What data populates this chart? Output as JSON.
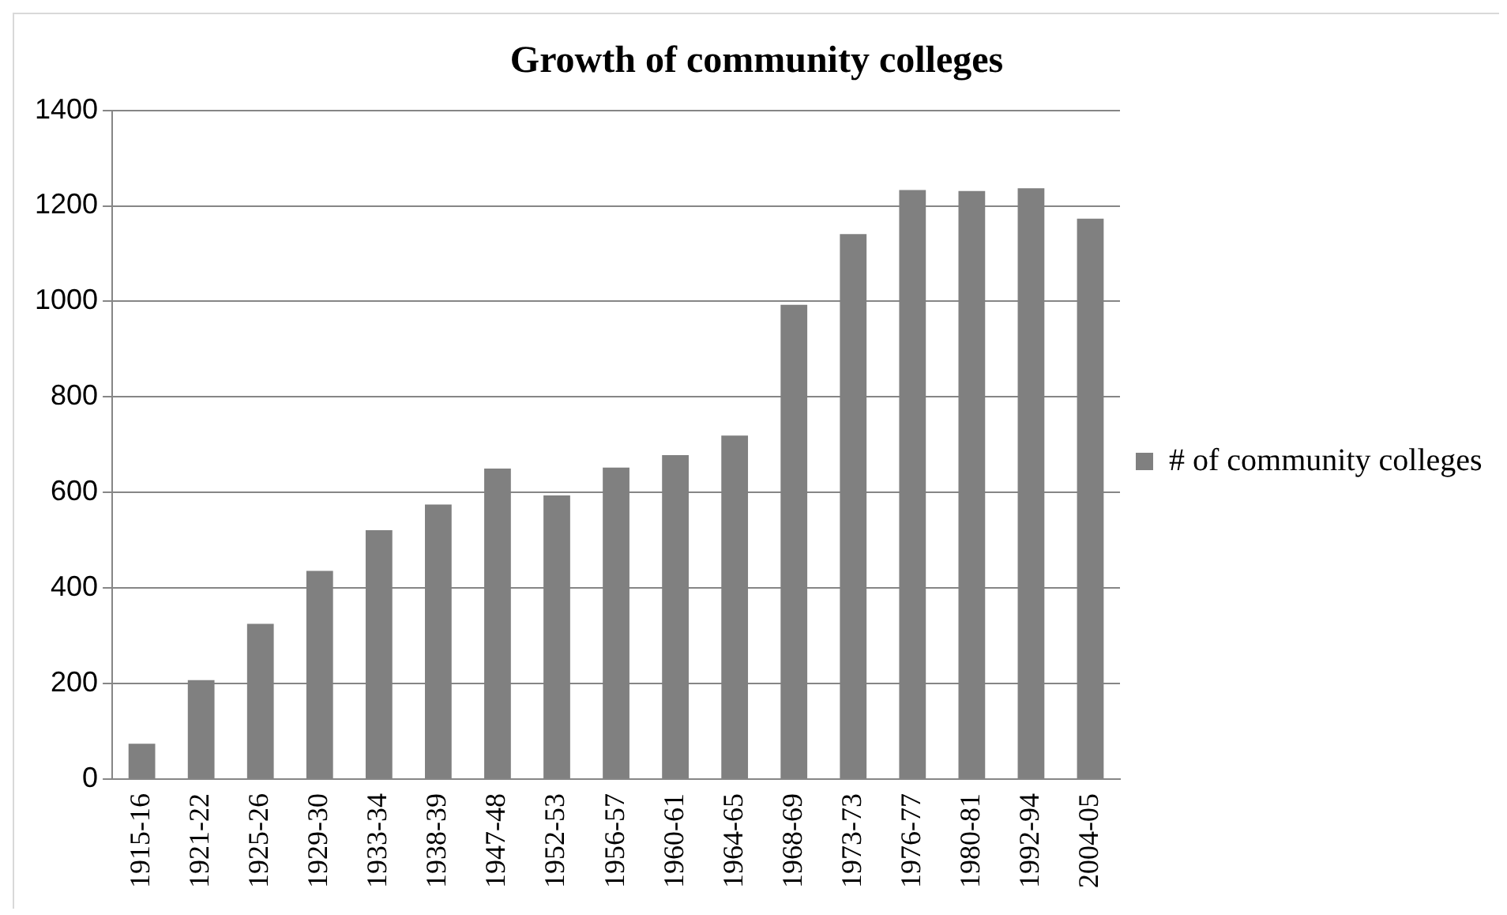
{
  "chart_data": {
    "type": "bar",
    "title": "Growth of community colleges",
    "categories": [
      "1915-16",
      "1921-22",
      "1925-26",
      "1929-30",
      "1933-34",
      "1938-39",
      "1947-48",
      "1952-53",
      "1956-57",
      "1960-61",
      "1964-65",
      "1968-69",
      "1973-73",
      "1976-77",
      "1980-81",
      "1992-94",
      "2004-05"
    ],
    "series": [
      {
        "name": "# of community colleges",
        "color": "#808080",
        "values": [
          74,
          207,
          325,
          436,
          521,
          575,
          650,
          594,
          652,
          678,
          719,
          993,
          1141,
          1233,
          1231,
          1237,
          1173
        ]
      }
    ],
    "ylim": [
      0,
      1400
    ],
    "yticks": [
      0,
      200,
      400,
      600,
      800,
      1000,
      1200,
      1400
    ],
    "grid": "y",
    "legend": "right"
  }
}
